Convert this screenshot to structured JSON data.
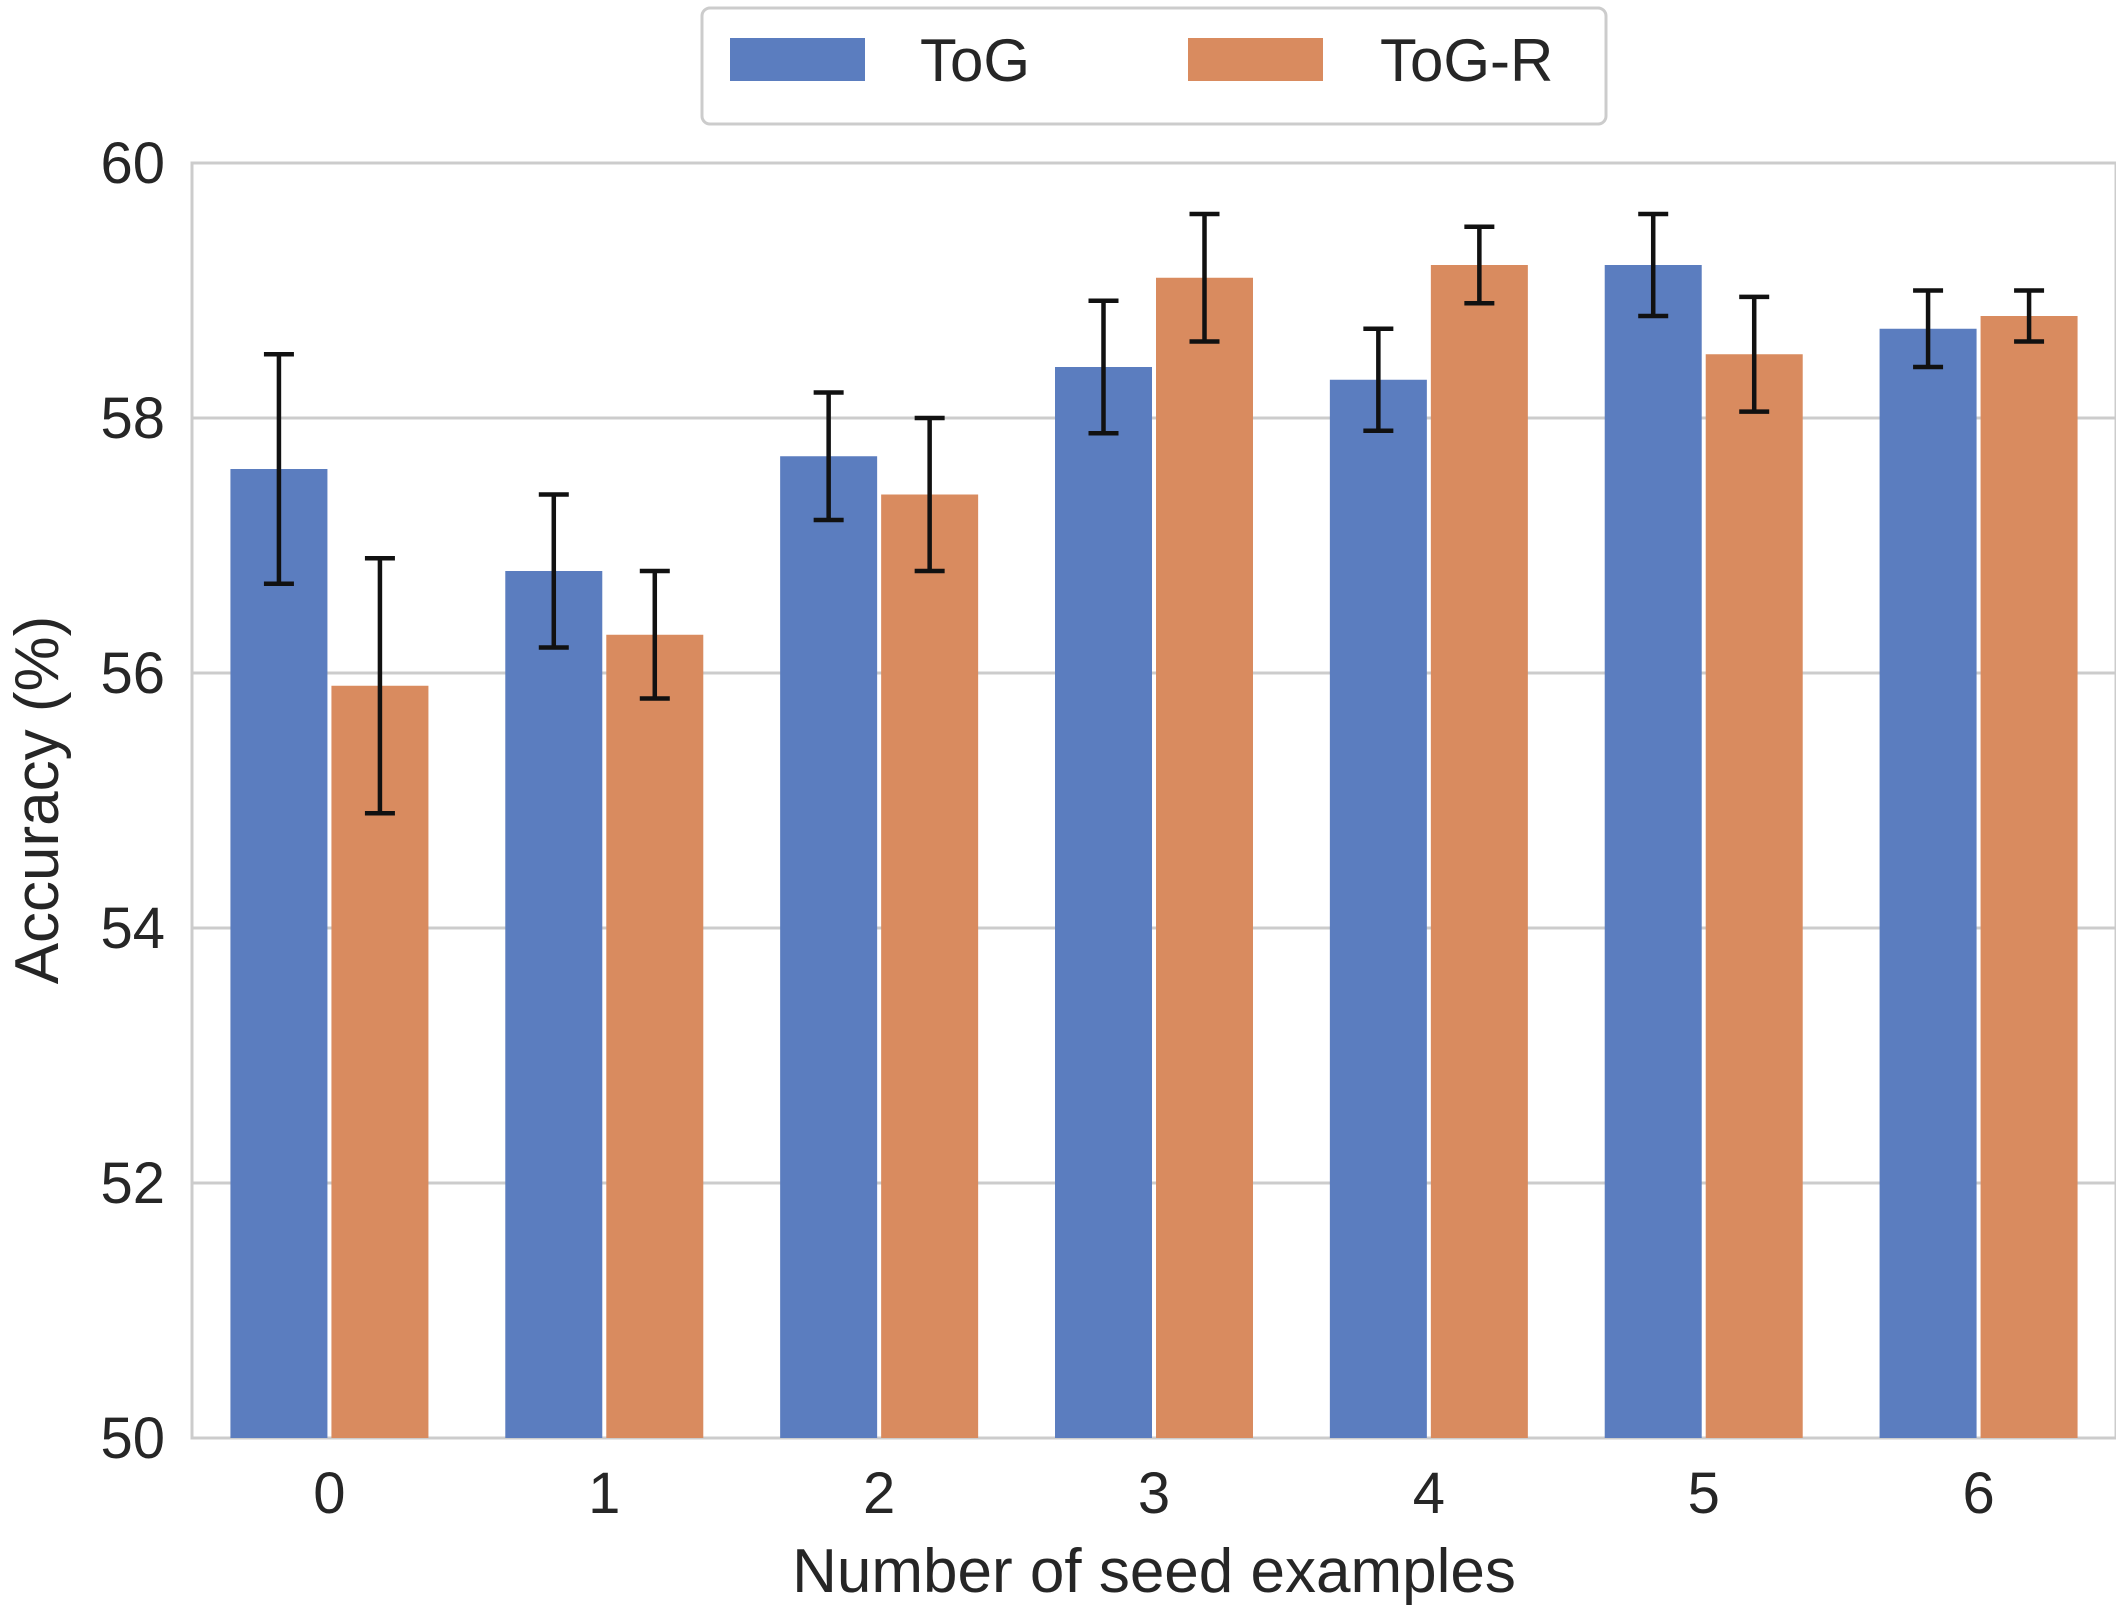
{
  "chart_data": {
    "type": "bar",
    "categories": [
      "0",
      "1",
      "2",
      "3",
      "4",
      "5",
      "6"
    ],
    "series": [
      {
        "name": "ToG",
        "color": "#5b7dbf",
        "values": [
          57.6,
          56.8,
          57.7,
          58.4,
          58.3,
          59.2,
          58.7
        ],
        "error": [
          0.9,
          0.6,
          0.5,
          0.52,
          0.4,
          0.4,
          0.3
        ]
      },
      {
        "name": "ToG-R",
        "color": "#d98b5f",
        "values": [
          55.9,
          56.3,
          57.4,
          59.1,
          59.2,
          58.5,
          58.8
        ],
        "error": [
          1.0,
          0.5,
          0.6,
          0.5,
          0.3,
          0.45,
          0.2
        ]
      }
    ],
    "title": "",
    "xlabel": "Number of seed examples",
    "ylabel": "Accuracy (%)",
    "ylim": [
      50,
      60
    ],
    "yticks": [
      50,
      52,
      54,
      56,
      58,
      60
    ],
    "grid": "horizontal",
    "legend": "top-center"
  }
}
